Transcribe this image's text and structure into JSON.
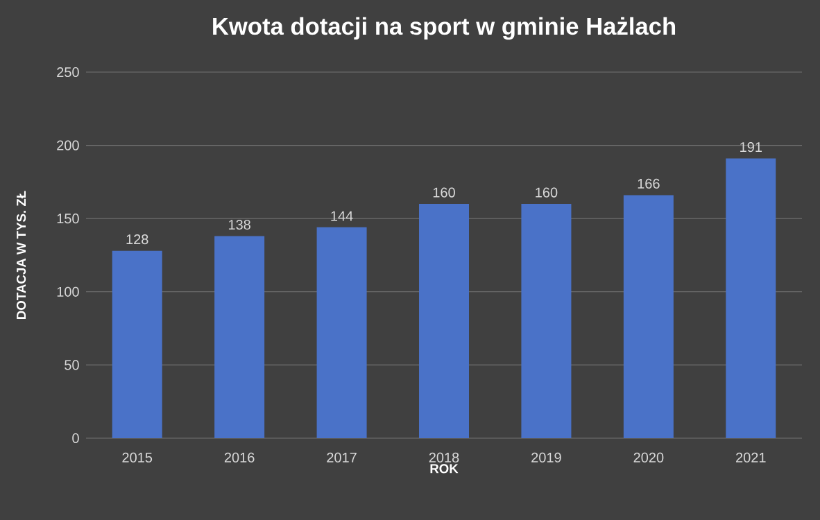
{
  "chart_data": {
    "type": "bar",
    "title": "Kwota dotacji na sport w gminie Hażlach",
    "xlabel": "ROK",
    "ylabel": "DOTACJA W TYS. ZŁ",
    "categories": [
      "2015",
      "2016",
      "2017",
      "2018",
      "2019",
      "2020",
      "2021"
    ],
    "values": [
      128,
      138,
      144,
      160,
      160,
      166,
      191
    ],
    "color": "#4a72c8",
    "ylim": [
      0,
      250
    ],
    "yticks": [
      0,
      50,
      100,
      150,
      200,
      250
    ],
    "grid": "y",
    "data_labels": true
  }
}
